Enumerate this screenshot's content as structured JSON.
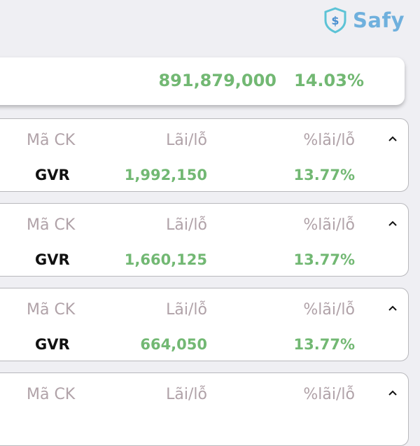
{
  "brand": {
    "name": "Safy",
    "color": "#6fb0dd"
  },
  "summary": {
    "profit": "891,879,000",
    "percent": "14.03%"
  },
  "columns": {
    "symbol": "Mã CK",
    "profit": "Lãi/lỗ",
    "percent": "%lãi/lỗ"
  },
  "colors": {
    "positive": "#72b873",
    "label": "#b0a2a8"
  },
  "holdings": [
    {
      "symbol": "GVR",
      "profit": "1,992,150",
      "percent": "13.77%",
      "expanded": true
    },
    {
      "symbol": "GVR",
      "profit": "1,660,125",
      "percent": "13.77%",
      "expanded": true
    },
    {
      "symbol": "GVR",
      "profit": "664,050",
      "percent": "13.77%",
      "expanded": true
    },
    {
      "symbol": "",
      "profit": "",
      "percent": "",
      "expanded": true
    }
  ]
}
